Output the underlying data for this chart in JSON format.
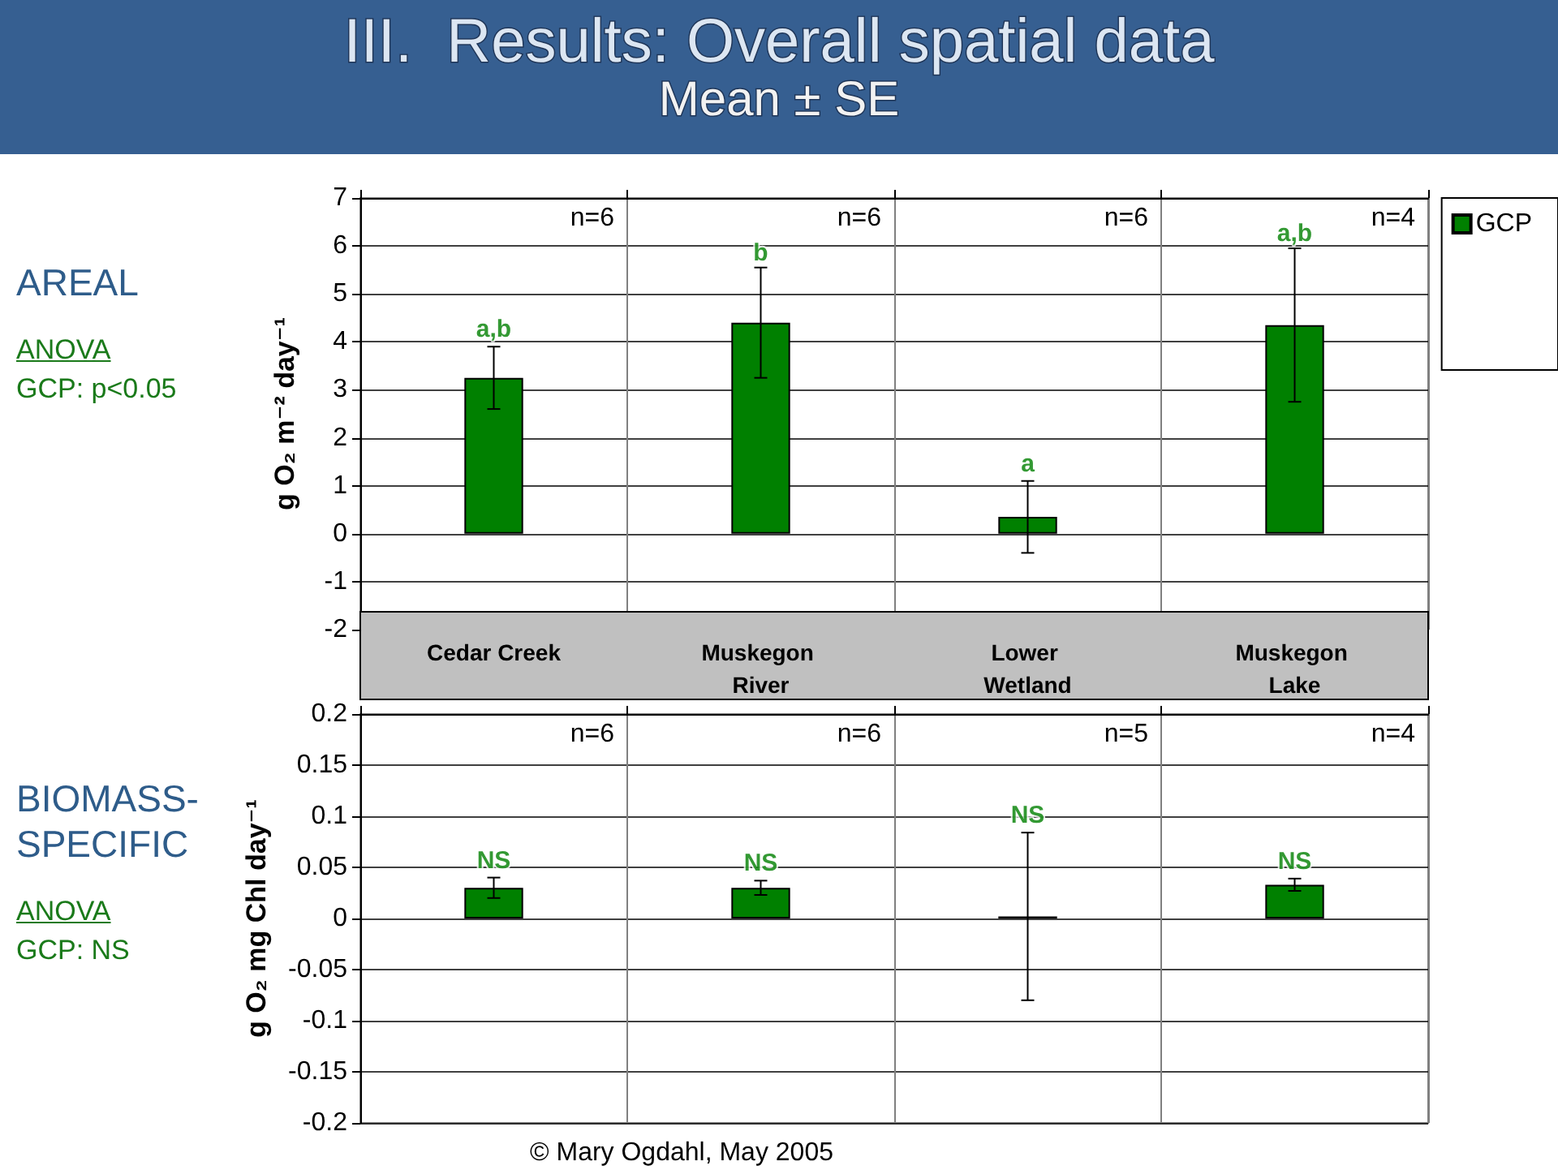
{
  "chart_data": [
    {
      "type": "bar",
      "title": "III.  Results: Overall spatial data",
      "subtitle": "Mean ± SE",
      "ylabel": "g O₂ m⁻² day⁻¹",
      "categories": [
        "Cedar Creek",
        "Muskegon River",
        "Lower Wetland",
        "Muskegon Lake"
      ],
      "series": [
        {
          "name": "GCP",
          "color": "#008000",
          "values": [
            3.25,
            4.4,
            0.35,
            4.35
          ],
          "errors": [
            0.65,
            1.15,
            0.75,
            1.6
          ]
        }
      ],
      "ylim": [
        -2,
        7
      ],
      "yticks": [
        -2,
        -1,
        0,
        1,
        2,
        3,
        4,
        5,
        6,
        7
      ],
      "grid": true,
      "legend": "top right",
      "annotations": [
        "AREAL",
        "ANOVA",
        "GCP: p<0.05",
        "n=6",
        "n=6",
        "n=6",
        "n=4",
        {
          "text": "a,b",
          "x": "Cedar Creek",
          "y": 3.9
        },
        {
          "text": "b",
          "x": "Muskegon River",
          "y": 5.5
        },
        {
          "text": "a",
          "x": "Lower Wetland",
          "y": 1.1
        },
        {
          "text": "a,b",
          "x": "Muskegon Lake",
          "y": 5.9
        }
      ]
    },
    {
      "type": "bar",
      "ylabel": "g O₂ mg Chl day⁻¹",
      "categories": [
        "Cedar Creek",
        "Muskegon River",
        "Lower Wetland",
        "Muskegon Lake"
      ],
      "series": [
        {
          "color": "#008000",
          "values": [
            0.03,
            0.03,
            0.002,
            0.033
          ],
          "errors": [
            0.01,
            0.007,
            0.082,
            0.006
          ]
        }
      ],
      "ylim": [
        -0.2,
        0.2
      ],
      "yticks": [
        -0.2,
        -0.15,
        -0.1,
        -0.05,
        0,
        0.05,
        0.1,
        0.15,
        0.2
      ],
      "grid": true,
      "tick_labels": "y",
      "annotations": [
        "BIOMASS-SPECIFIC",
        "ANOVA",
        "GCP: NS",
        "n=6",
        "n=6",
        "n=5",
        "n=4",
        "© Mary Ogdahl, May 2005",
        {
          "text": "NS",
          "x": "Cedar Creek",
          "y": 0.04
        },
        {
          "text": "NS",
          "x": "Muskegon River",
          "y": 0.037
        },
        {
          "text": "NS",
          "x": "Lower Wetland",
          "y": 0.084
        },
        {
          "text": "NS",
          "x": "Muskegon Lake",
          "y": 0.039
        }
      ]
    }
  ]
}
